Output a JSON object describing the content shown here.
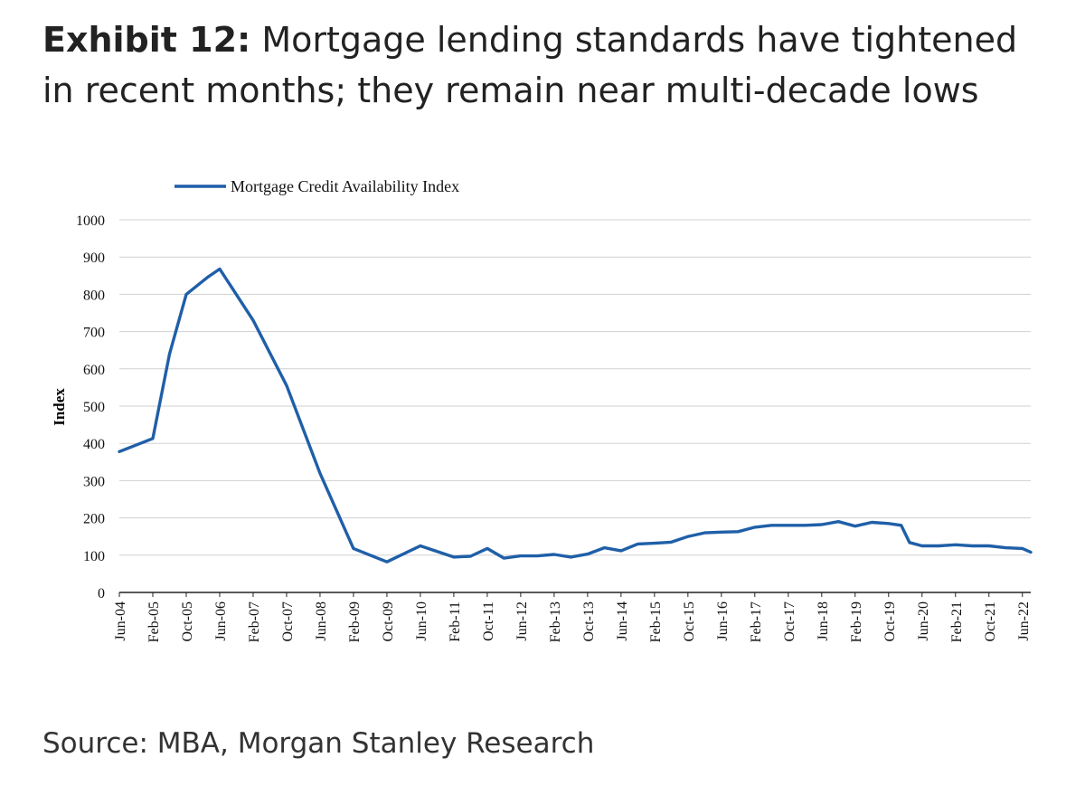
{
  "title": {
    "bold": "Exhibit 12:",
    "rest": " Mortgage lending standards have tightened in recent months; they remain near multi-decade lows"
  },
  "source": "Source: MBA, Morgan Stanley Research",
  "chart_data": {
    "type": "line",
    "ylabel": "Index",
    "ylim": [
      0,
      1000
    ],
    "yticks": [
      0,
      100,
      200,
      300,
      400,
      500,
      600,
      700,
      800,
      900,
      1000
    ],
    "grid": true,
    "legend_position": "top-left",
    "xticks": [
      "Jun-04",
      "Feb-05",
      "Oct-05",
      "Jun-06",
      "Feb-07",
      "Oct-07",
      "Jun-08",
      "Feb-09",
      "Oct-09",
      "Jun-10",
      "Feb-11",
      "Oct-11",
      "Jun-12",
      "Feb-13",
      "Oct-13",
      "Jun-14",
      "Feb-15",
      "Oct-15",
      "Jun-16",
      "Feb-17",
      "Oct-17",
      "Jun-18",
      "Feb-19",
      "Oct-19",
      "Jun-20",
      "Feb-21",
      "Oct-21",
      "Jun-22"
    ],
    "series": [
      {
        "name": "Mortgage Credit Availability Index",
        "color": "#1f5fa8",
        "x": [
          "Jun-04",
          "Feb-05",
          "Jun-05",
          "Oct-05",
          "Mar-06",
          "Jun-06",
          "Feb-07",
          "Oct-07",
          "Jun-08",
          "Feb-09",
          "Oct-09",
          "Jun-10",
          "Feb-11",
          "Jun-11",
          "Oct-11",
          "Feb-12",
          "Jun-12",
          "Oct-12",
          "Feb-13",
          "Jun-13",
          "Oct-13",
          "Feb-14",
          "Jun-14",
          "Oct-14",
          "Feb-15",
          "Jun-15",
          "Oct-15",
          "Feb-16",
          "Jun-16",
          "Oct-16",
          "Feb-17",
          "Jun-17",
          "Oct-17",
          "Feb-18",
          "Jun-18",
          "Oct-18",
          "Feb-19",
          "Jun-19",
          "Oct-19",
          "Jan-20",
          "Mar-20",
          "Jun-20",
          "Oct-20",
          "Feb-21",
          "Jun-21",
          "Oct-21",
          "Feb-22",
          "Jun-22",
          "Aug-22"
        ],
        "values": [
          378,
          413,
          640,
          800,
          845,
          868,
          730,
          555,
          320,
          118,
          82,
          125,
          95,
          97,
          118,
          92,
          98,
          98,
          102,
          95,
          103,
          120,
          112,
          130,
          132,
          135,
          150,
          160,
          162,
          163,
          175,
          180,
          180,
          180,
          182,
          190,
          178,
          188,
          185,
          180,
          134,
          125,
          125,
          128,
          125,
          125,
          120,
          118,
          108
        ]
      }
    ]
  }
}
